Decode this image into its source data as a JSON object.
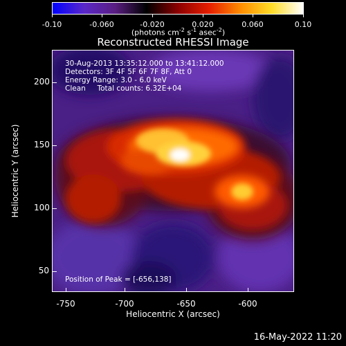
{
  "colorbar": {
    "ticks": [
      "-0.10",
      "-0.060",
      "-0.020",
      "0.020",
      "0.060",
      "0.10"
    ],
    "units_text": "(photons cm",
    "units_exp1": "-2",
    "units_mid": " s",
    "units_exp2": "-1",
    "units_end": " asec",
    "units_exp3": "-2",
    "units_close": ")"
  },
  "title": "Reconstructed RHESSI Image",
  "info": {
    "line1": "30-Aug-2013 13:35:12.000 to 13:41:12.000",
    "line2": "Detectors: 3F 4F 5F 6F 7F 8F, Att 0",
    "line3": "Energy Range: 3.0 - 6.0 keV",
    "line4": "Clean     Total counts: 6.32E+04",
    "peak": "Position of Peak = [-656,138]"
  },
  "axes": {
    "xlabel": "Heliocentric X (arcsec)",
    "ylabel": "Heliocentric Y (arcsec)",
    "xticks": [
      "-750",
      "-700",
      "-650",
      "-600"
    ],
    "yticks": [
      "200",
      "150",
      "100",
      "50"
    ]
  },
  "date_stamp": "16-May-2022 11:20",
  "colors": {
    "background": "#000000",
    "colormap": [
      "#0000ff",
      "#5a28c8",
      "#5a1e82",
      "#000000",
      "#8c0000",
      "#e61e00",
      "#ff8c00",
      "#ffdc28",
      "#ffffff"
    ]
  }
}
